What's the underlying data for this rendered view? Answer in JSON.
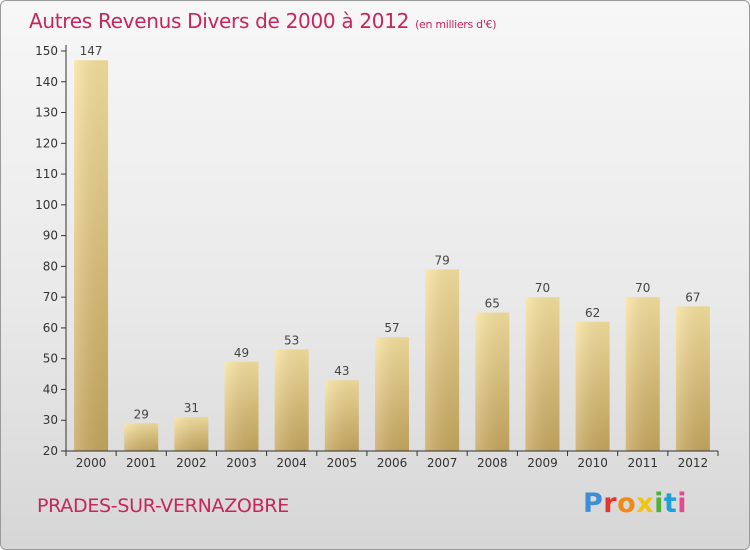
{
  "header": {
    "title": "Autres Revenus Divers de 2000 à 2012",
    "subtitle": "(en milliers d'€)"
  },
  "footer": {
    "commune": "PRADES-SUR-VERNAZOBRE",
    "brand": "Proxiti"
  },
  "colors": {
    "title": "#c8245d",
    "bar_light": "#f8e3a0",
    "bar_dark": "#c8a85f",
    "axis": "#333333"
  },
  "chart_data": {
    "type": "bar",
    "title": "Autres Revenus Divers de 2000 à 2012",
    "subtitle": "(en milliers d'€)",
    "categories": [
      "2000",
      "2001",
      "2002",
      "2003",
      "2004",
      "2005",
      "2006",
      "2007",
      "2008",
      "2009",
      "2010",
      "2011",
      "2012"
    ],
    "values": [
      147,
      29,
      31,
      49,
      53,
      43,
      57,
      79,
      65,
      70,
      62,
      70,
      67
    ],
    "ylim": [
      20,
      150
    ],
    "yticks": [
      20,
      30,
      40,
      50,
      60,
      70,
      80,
      90,
      100,
      110,
      120,
      130,
      140,
      150
    ],
    "grid": false,
    "data_labels": true
  }
}
